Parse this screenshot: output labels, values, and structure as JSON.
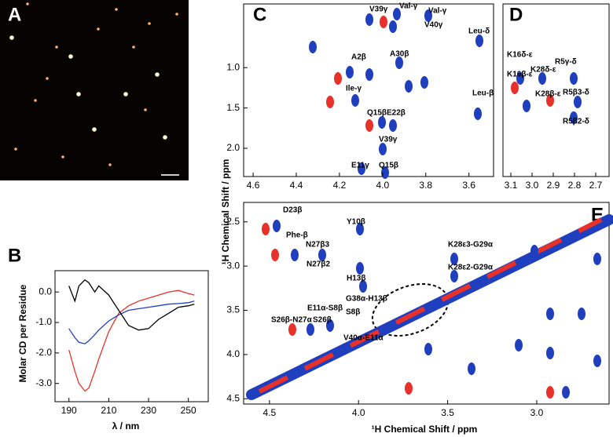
{
  "panel_labels": [
    "A",
    "B",
    "C",
    "D",
    "E"
  ],
  "chart_data": {
    "type": "line",
    "xlabel": "λ / nm",
    "ylabel": "Molar CD per Residue",
    "x": [
      190,
      193,
      195,
      198,
      200,
      203,
      205,
      210,
      215,
      220,
      225,
      230,
      235,
      240,
      245,
      250,
      253
    ],
    "series": [
      {
        "color": "#e8312a",
        "values": [
          -1.9,
          -2.6,
          -3.0,
          -3.25,
          -3.15,
          -2.6,
          -2.2,
          -1.3,
          -0.7,
          -0.45,
          -0.3,
          -0.2,
          -0.1,
          0.0,
          0.05,
          -0.05,
          -0.1
        ]
      },
      {
        "color": "#1f3fbf",
        "values": [
          -1.2,
          -1.5,
          -1.65,
          -1.7,
          -1.6,
          -1.4,
          -1.25,
          -0.95,
          -0.75,
          -0.6,
          -0.55,
          -0.5,
          -0.45,
          -0.4,
          -0.38,
          -0.35,
          -0.3
        ]
      },
      {
        "color": "#000000",
        "values": [
          0.2,
          -0.3,
          0.2,
          0.4,
          0.3,
          0.0,
          0.2,
          -0.1,
          -0.6,
          -1.1,
          -1.25,
          -1.2,
          -0.9,
          -0.7,
          -0.5,
          -0.45,
          -0.4
        ]
      }
    ],
    "xlim": [
      183,
      260
    ],
    "ylim": [
      -3.6,
      0.7
    ],
    "xticks": [
      190,
      210,
      230,
      250
    ],
    "yticks": [
      {
        "value": 0,
        "label": "0.0"
      },
      {
        "value": -1,
        "label": "-1.0"
      },
      {
        "value": -2,
        "label": "-2.0"
      },
      {
        "value": -3,
        "label": "-3.0"
      }
    ]
  },
  "y_axis_label": "¹H Chemical Shift / ppm",
  "x_axis_label": "¹H Chemical Shift / ppm",
  "spectra": [
    {
      "xlim": [
        4.644,
        3.486
      ],
      "ylim": [
        0.21,
        2.35
      ],
      "xticks": [
        {
          "value": 4.6,
          "label": "4.6"
        },
        {
          "value": 4.4,
          "label": "4.4"
        },
        {
          "value": 4.2,
          "label": "4.2"
        },
        {
          "value": 4.0,
          "label": "4.0"
        },
        {
          "value": 3.8,
          "label": "3.8"
        },
        {
          "value": 3.6,
          "label": "3.6"
        }
      ],
      "yticks": [
        {
          "value": 1.0,
          "label": "1.0"
        },
        {
          "value": 1.5,
          "label": "1.5"
        },
        {
          "value": 2.0,
          "label": "2.0"
        }
      ],
      "annotations": [
        "V39γ",
        "Val-γ",
        "Val-γ",
        "V40γ",
        "Leu-δ",
        "A2β",
        "A30β",
        "Ile-γ",
        "Leu-β",
        "Q15βE22β",
        "V39γ",
        "E11γ",
        "Q15β"
      ]
    },
    {
      "xlim": [
        3.137,
        2.637
      ],
      "ylim": [
        0.21,
        2.35
      ],
      "xticks": [
        {
          "value": 3.1,
          "label": "3.1"
        },
        {
          "value": 3.0,
          "label": "3.0"
        },
        {
          "value": 2.9,
          "label": "2.9"
        },
        {
          "value": 2.8,
          "label": "2.8"
        },
        {
          "value": 2.7,
          "label": "2.7"
        }
      ],
      "yticks": [],
      "annotations": [
        "K16δ-ε",
        "K28δ-ε",
        "R5γ-δ",
        "K16β-ε",
        "K28β-ε",
        "R5β3-δ",
        "R5β2-δ"
      ]
    },
    {
      "xlim": [
        4.645,
        2.594
      ],
      "ylim": [
        2.28,
        4.56
      ],
      "xticks": [
        {
          "value": 4.5,
          "label": "4.5"
        },
        {
          "value": 4.0,
          "label": "4.0"
        },
        {
          "value": 3.5,
          "label": "3.5"
        },
        {
          "value": 3.0,
          "label": "3.0"
        }
      ],
      "yticks": [
        {
          "value": 2.5,
          "label": "2.5"
        },
        {
          "value": 3.0,
          "label": "3.0"
        },
        {
          "value": 3.5,
          "label": "3.5"
        },
        {
          "value": 4.0,
          "label": "4.0"
        },
        {
          "value": 4.5,
          "label": "4.5"
        }
      ],
      "annotations": [
        "D23β",
        "Y10β",
        "Phe-β",
        "N27β3",
        "N27β2",
        "H13β",
        "K28ε3-G29α",
        "K28ε2-G29α",
        "G38α-H13β",
        "E11α-S8β",
        "S8β",
        "S26β-N27α",
        "S26β",
        "V40α-E11α"
      ]
    }
  ]
}
